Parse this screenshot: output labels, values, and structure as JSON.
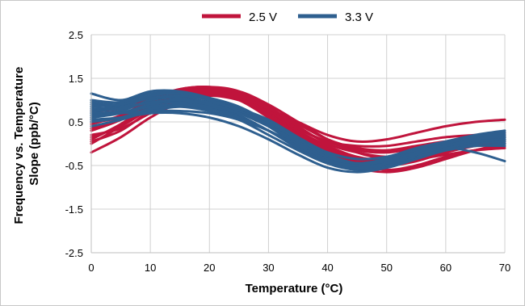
{
  "chart_data": {
    "type": "line",
    "xlabel": "Temperature (°C)",
    "ylabel_lines": [
      "Frequency vs. Temperature",
      "Slope (ppb/°C)"
    ],
    "xlim": [
      0,
      70
    ],
    "ylim": [
      -2.5,
      2.5
    ],
    "x_ticks": [
      0,
      10,
      20,
      30,
      40,
      50,
      60,
      70
    ],
    "y_ticks": [
      2.5,
      1.5,
      0.5,
      -0.5,
      -1.5,
      -2.5
    ],
    "y_tick_labels": [
      "2.5",
      "1.5",
      "0.5",
      "-0.5",
      "-1.5",
      "-2.5"
    ],
    "grid": true,
    "legend_position": "top-center",
    "x": [
      0,
      5,
      10,
      15,
      20,
      25,
      30,
      35,
      40,
      45,
      50,
      55,
      60,
      65,
      70
    ],
    "series": [
      {
        "name": "2.5 V",
        "color": "#c0143c",
        "curves": [
          [
            0.0,
            0.4,
            0.85,
            1.1,
            1.15,
            1.0,
            0.6,
            0.15,
            -0.2,
            -0.4,
            -0.45,
            -0.35,
            -0.15,
            0.05,
            0.15
          ],
          [
            0.1,
            0.45,
            0.9,
            1.15,
            1.2,
            1.05,
            0.7,
            0.25,
            -0.1,
            -0.35,
            -0.4,
            -0.3,
            -0.1,
            0.05,
            0.1
          ],
          [
            0.3,
            0.55,
            0.95,
            1.2,
            1.25,
            1.1,
            0.75,
            0.3,
            -0.05,
            -0.3,
            -0.38,
            -0.3,
            -0.12,
            0.02,
            0.0
          ],
          [
            0.45,
            0.65,
            1.0,
            1.25,
            1.3,
            1.2,
            0.8,
            0.35,
            0.05,
            -0.15,
            -0.2,
            -0.1,
            0.0,
            0.1,
            0.2
          ],
          [
            0.6,
            0.75,
            1.05,
            1.25,
            1.3,
            1.15,
            0.7,
            0.2,
            -0.15,
            -0.4,
            -0.5,
            -0.4,
            -0.2,
            -0.05,
            0.05
          ],
          [
            -0.2,
            0.15,
            0.6,
            0.95,
            1.1,
            1.0,
            0.75,
            0.35,
            0.05,
            -0.05,
            -0.05,
            0.05,
            0.15,
            0.2,
            0.25
          ],
          [
            0.2,
            0.35,
            0.7,
            1.0,
            1.1,
            1.05,
            0.8,
            0.5,
            0.2,
            0.05,
            0.1,
            0.25,
            0.4,
            0.5,
            0.55
          ],
          [
            0.75,
            0.8,
            1.0,
            1.15,
            1.2,
            1.1,
            0.7,
            0.2,
            -0.25,
            -0.55,
            -0.65,
            -0.55,
            -0.35,
            -0.15,
            0.0
          ],
          [
            0.05,
            0.3,
            0.75,
            1.05,
            1.15,
            1.05,
            0.65,
            0.2,
            -0.2,
            -0.45,
            -0.6,
            -0.5,
            -0.3,
            -0.15,
            -0.05
          ],
          [
            0.5,
            0.6,
            0.95,
            1.15,
            1.25,
            1.15,
            0.85,
            0.4,
            0.0,
            -0.2,
            -0.3,
            -0.25,
            -0.1,
            0.05,
            0.1
          ],
          [
            0.35,
            0.55,
            0.85,
            1.1,
            1.2,
            1.1,
            0.8,
            0.45,
            0.1,
            -0.1,
            -0.15,
            -0.05,
            0.05,
            0.1,
            0.15
          ],
          [
            0.15,
            0.4,
            0.8,
            1.1,
            1.25,
            1.2,
            0.9,
            0.5,
            0.1,
            -0.2,
            -0.35,
            -0.35,
            -0.25,
            -0.15,
            -0.1
          ]
        ]
      },
      {
        "name": "3.3 V",
        "color": "#2e5f8f",
        "curves": [
          [
            0.7,
            0.75,
            1.0,
            1.05,
            0.95,
            0.75,
            0.45,
            0.05,
            -0.3,
            -0.5,
            -0.45,
            -0.25,
            -0.05,
            0.1,
            0.15
          ],
          [
            1.0,
            0.95,
            1.15,
            1.15,
            1.0,
            0.75,
            0.4,
            -0.05,
            -0.4,
            -0.55,
            -0.5,
            -0.3,
            -0.1,
            0.05,
            0.1
          ],
          [
            1.15,
            1.0,
            1.2,
            1.2,
            1.05,
            0.8,
            0.45,
            0.0,
            -0.35,
            -0.5,
            -0.45,
            -0.25,
            -0.05,
            0.1,
            0.2
          ],
          [
            0.8,
            0.85,
            1.05,
            1.05,
            0.9,
            0.65,
            0.3,
            -0.1,
            -0.45,
            -0.6,
            -0.55,
            -0.35,
            -0.15,
            0.0,
            0.05
          ],
          [
            0.6,
            0.7,
            0.9,
            0.95,
            0.85,
            0.6,
            0.3,
            -0.05,
            -0.35,
            -0.45,
            -0.35,
            -0.15,
            0.05,
            0.15,
            0.25
          ],
          [
            0.55,
            0.6,
            0.7,
            0.7,
            0.6,
            0.4,
            0.1,
            -0.25,
            -0.55,
            -0.65,
            -0.55,
            -0.35,
            -0.15,
            -0.05,
            0.0
          ],
          [
            0.9,
            0.85,
            0.95,
            1.0,
            0.95,
            0.8,
            0.55,
            0.15,
            -0.2,
            -0.35,
            -0.3,
            -0.15,
            0.0,
            0.1,
            0.15
          ],
          [
            0.7,
            0.7,
            0.75,
            0.75,
            0.7,
            0.55,
            0.3,
            -0.05,
            -0.35,
            -0.5,
            -0.45,
            -0.3,
            -0.15,
            -0.05,
            -0.05
          ],
          [
            0.4,
            0.55,
            0.75,
            0.85,
            0.8,
            0.6,
            0.3,
            -0.1,
            -0.4,
            -0.5,
            -0.45,
            -0.3,
            -0.1,
            0.05,
            0.1
          ],
          [
            0.85,
            0.9,
            1.05,
            1.1,
            1.0,
            0.75,
            0.4,
            0.0,
            -0.3,
            -0.45,
            -0.4,
            -0.25,
            -0.1,
            -0.2,
            -0.4
          ],
          [
            0.65,
            0.7,
            0.85,
            0.9,
            0.85,
            0.7,
            0.45,
            0.1,
            -0.2,
            -0.35,
            -0.3,
            -0.1,
            0.05,
            0.2,
            0.3
          ],
          [
            0.75,
            0.8,
            0.95,
            1.0,
            0.9,
            0.7,
            0.4,
            0.05,
            -0.3,
            -0.45,
            -0.35,
            -0.2,
            -0.05,
            0.05,
            0.1
          ],
          [
            0.95,
            0.9,
            1.1,
            1.15,
            1.05,
            0.85,
            0.5,
            0.1,
            -0.25,
            -0.45,
            -0.4,
            -0.2,
            0.0,
            0.15,
            0.25
          ],
          [
            0.5,
            0.6,
            0.8,
            0.85,
            0.75,
            0.55,
            0.2,
            -0.15,
            -0.45,
            -0.55,
            -0.45,
            -0.25,
            -0.05,
            0.1,
            0.2
          ]
        ]
      }
    ]
  }
}
